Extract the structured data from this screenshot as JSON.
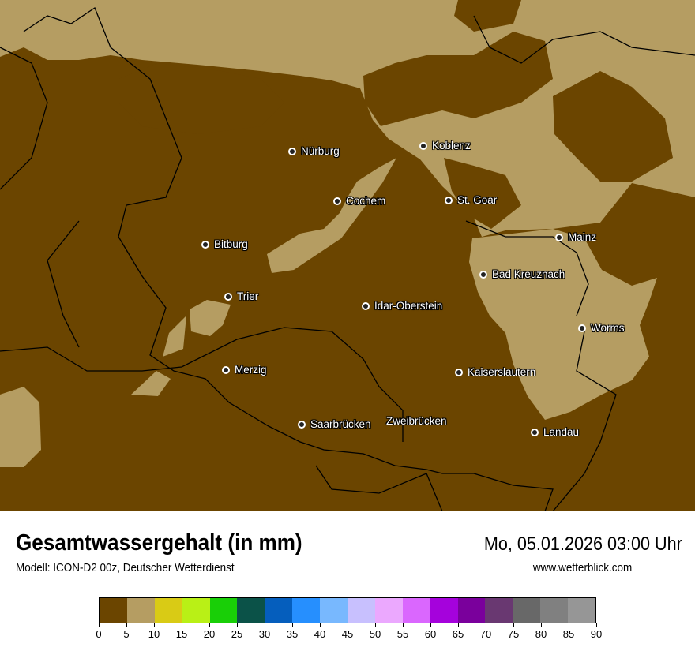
{
  "header": {
    "title": "Gesamtwassergehalt (in mm)",
    "subtitle": "Modell: ICON-D2 00z, Deutscher Wetterdienst",
    "datetime": "Mo, 05.01.2026 03:00 Uhr",
    "website": "www.wetterblick.com"
  },
  "map": {
    "colors": {
      "background_class": "#6b4500",
      "light_class": "#b59d62",
      "border": "#000000"
    },
    "cities": [
      {
        "name": "Nürburg",
        "dot": true
      },
      {
        "name": "Koblenz",
        "dot": true
      },
      {
        "name": "Cochem",
        "dot": true
      },
      {
        "name": "St. Goar",
        "dot": true
      },
      {
        "name": "Mainz",
        "dot": true
      },
      {
        "name": "Bitburg",
        "dot": true
      },
      {
        "name": "Bad Kreuznach",
        "dot": true
      },
      {
        "name": "Trier",
        "dot": true
      },
      {
        "name": "Idar-Oberstein",
        "dot": true
      },
      {
        "name": "Worms",
        "dot": true
      },
      {
        "name": "Merzig",
        "dot": true
      },
      {
        "name": "Kaiserslautern",
        "dot": true
      },
      {
        "name": "Saarbrücken",
        "dot": true
      },
      {
        "name": "Zweibrücken",
        "dot": false
      },
      {
        "name": "Landau",
        "dot": true
      }
    ]
  },
  "legend": {
    "ticks": [
      "0",
      "5",
      "10",
      "15",
      "20",
      "25",
      "30",
      "35",
      "40",
      "45",
      "50",
      "55",
      "60",
      "65",
      "70",
      "75",
      "80",
      "85",
      "90"
    ],
    "colors": [
      "#6b4500",
      "#b59d62",
      "#d9cb15",
      "#b9f016",
      "#19cf07",
      "#0b5248",
      "#055ebd",
      "#268ffe",
      "#78b8fe",
      "#c8c0fe",
      "#eba8fe",
      "#da67fe",
      "#a502dc",
      "#7a009c",
      "#693871",
      "#686868",
      "#808080",
      "#969696"
    ]
  }
}
